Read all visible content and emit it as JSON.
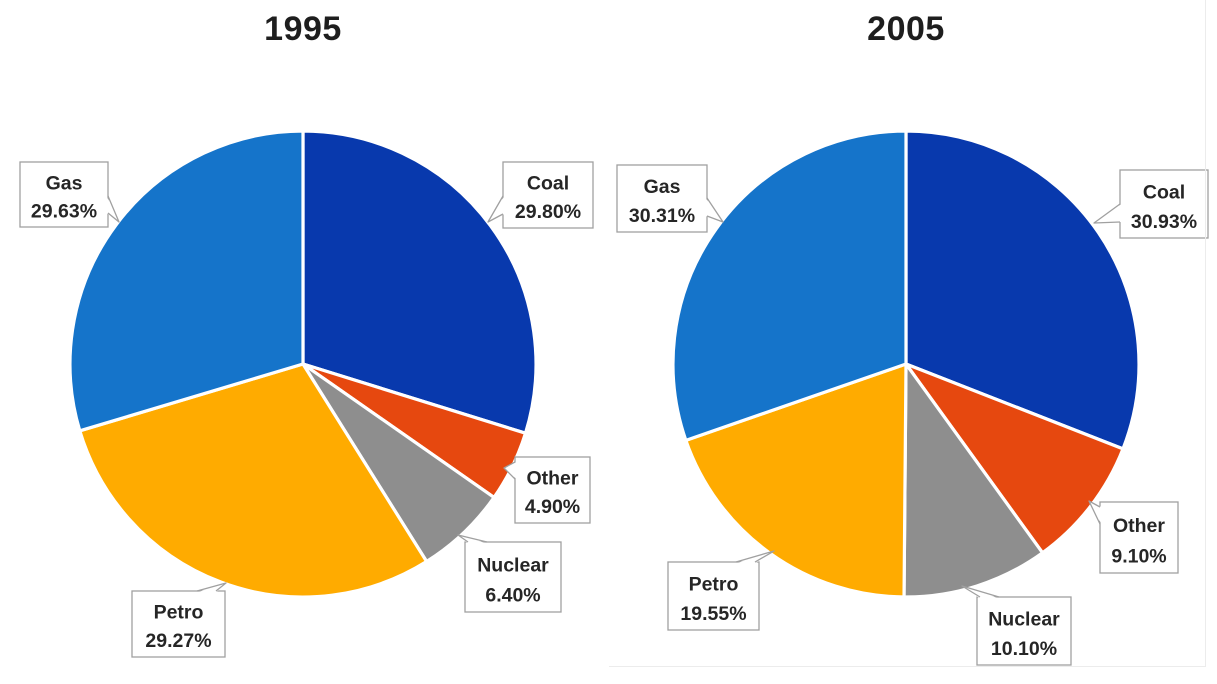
{
  "page": {
    "background_color": "#ffffff",
    "frame_border_color": "#ececec"
  },
  "chart_data": [
    {
      "type": "pie",
      "title": "1995",
      "categories": [
        "Coal",
        "Other",
        "Nuclear",
        "Petro",
        "Gas"
      ],
      "values": [
        29.8,
        4.9,
        6.4,
        29.27,
        29.63
      ],
      "value_labels": [
        "29.80%",
        "4.90%",
        "6.40%",
        "29.27%",
        "29.63%"
      ],
      "colors": [
        "#0839ad",
        "#e6480f",
        "#8e8e8e",
        "#ffab00",
        "#1574ca"
      ],
      "start_angle_deg": 0,
      "direction": "clockwise",
      "slice_separator_color": "#ffffff",
      "legend": "none",
      "label_style": "callout-box",
      "label_box_fill": "#ffffff",
      "label_box_border_color": "#a0a0a0",
      "label_text_color": "#262626",
      "title_color": "#1e1e1e"
    },
    {
      "type": "pie",
      "title": "2005",
      "categories": [
        "Coal",
        "Other",
        "Nuclear",
        "Petro",
        "Gas"
      ],
      "values": [
        30.93,
        9.1,
        10.1,
        19.55,
        30.31
      ],
      "value_labels": [
        "30.93%",
        "9.10%",
        "10.10%",
        "19.55%",
        "30.31%"
      ],
      "colors": [
        "#0839ad",
        "#e6480f",
        "#8e8e8e",
        "#ffab00",
        "#1574ca"
      ],
      "start_angle_deg": 0,
      "direction": "clockwise",
      "slice_separator_color": "#ffffff",
      "legend": "none",
      "label_style": "callout-box",
      "label_box_fill": "#ffffff",
      "label_box_border_color": "#a0a0a0",
      "label_text_color": "#262626",
      "title_color": "#1e1e1e"
    }
  ]
}
